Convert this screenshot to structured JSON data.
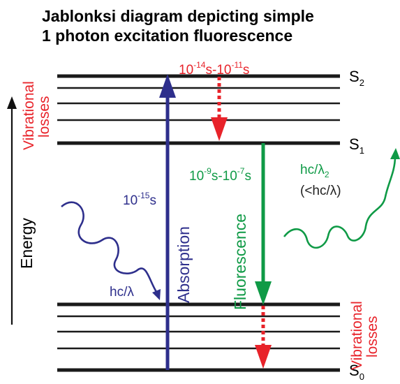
{
  "title": {
    "line1": "Jablonksi diagram depicting simple",
    "line2": "1 photon excitation fluorescence"
  },
  "states": {
    "s2": {
      "base": "S",
      "sub": "2"
    },
    "s1": {
      "base": "S",
      "sub": "1"
    },
    "s0": {
      "base": "S",
      "sub": "0"
    }
  },
  "labels": {
    "energy": "Energy",
    "vibrational_losses_top": {
      "line1": "Vibrational",
      "line2": "losses"
    },
    "vibrational_losses_bottom": {
      "line1": "Vibrational",
      "line2": "losses"
    },
    "absorption": "Absorption",
    "fluorescence": "Fluorescence",
    "absorption_time": {
      "base": "10",
      "sup": "-15",
      "unit": "s"
    },
    "relaxation_time": {
      "a_base": "10",
      "a_sup": "-14",
      "mid": "s-",
      "b_base": "10",
      "b_sup": "-11",
      "unit": "s"
    },
    "fluorescence_time": {
      "a_base": "10",
      "a_sup": "-9",
      "mid": "s-",
      "b_base": "10",
      "b_sup": "-7",
      "unit": "s"
    },
    "incoming_photon": "hc/λ",
    "emitted_photon": {
      "base": "hc/λ",
      "sub": "2"
    },
    "emitted_compare": "(<hc/λ)"
  },
  "colors": {
    "levels": "#1a1a1a",
    "absorption": "#2e2f8c",
    "fluorescence": "#0f9a46",
    "vibrational": "#e8232a",
    "title": "#000000"
  }
}
